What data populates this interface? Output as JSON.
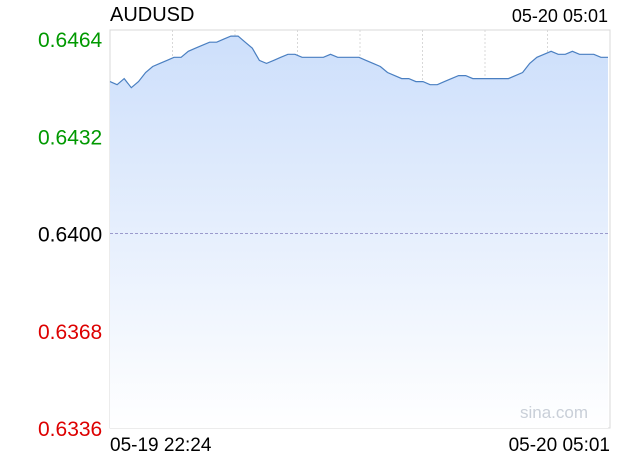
{
  "header": {
    "symbol": "AUDUSD",
    "timestamp": "05-20 05:01"
  },
  "watermark": "sina.com",
  "colors": {
    "up": "#009900",
    "down": "#dd0000",
    "neutral": "#000000",
    "line": "#4a7fc1",
    "fill_top": "#cddffb",
    "fill_bottom": "#ffffff",
    "grid": "#d8d8d8",
    "baseline": "#9a9acc"
  },
  "chart_data": {
    "type": "area",
    "title": "AUDUSD",
    "reference_price": 0.64,
    "ylim": [
      0.6336,
      0.6467
    ],
    "y_ticks": [
      "0.6464",
      "0.6432",
      "0.6400",
      "0.6368",
      "0.6336"
    ],
    "x_labels": [
      "05-19 22:24",
      "05-20 05:01"
    ],
    "grid": true,
    "series": [
      {
        "values": [
          0.645,
          0.6449,
          0.6451,
          0.6448,
          0.645,
          0.6453,
          0.6455,
          0.6456,
          0.6457,
          0.6458,
          0.6458,
          0.646,
          0.6461,
          0.6462,
          0.6463,
          0.6463,
          0.6464,
          0.6465,
          0.6465,
          0.6463,
          0.6461,
          0.6457,
          0.6456,
          0.6457,
          0.6458,
          0.6459,
          0.6459,
          0.6458,
          0.6458,
          0.6458,
          0.6458,
          0.6459,
          0.6458,
          0.6458,
          0.6458,
          0.6458,
          0.6457,
          0.6456,
          0.6455,
          0.6453,
          0.6452,
          0.6451,
          0.6451,
          0.645,
          0.645,
          0.6449,
          0.6449,
          0.645,
          0.6451,
          0.6452,
          0.6452,
          0.6451,
          0.6451,
          0.6451,
          0.6451,
          0.6451,
          0.6451,
          0.6452,
          0.6453,
          0.6456,
          0.6458,
          0.6459,
          0.646,
          0.6459,
          0.6459,
          0.646,
          0.6459,
          0.6459,
          0.6459,
          0.6458,
          0.6458
        ]
      }
    ]
  }
}
